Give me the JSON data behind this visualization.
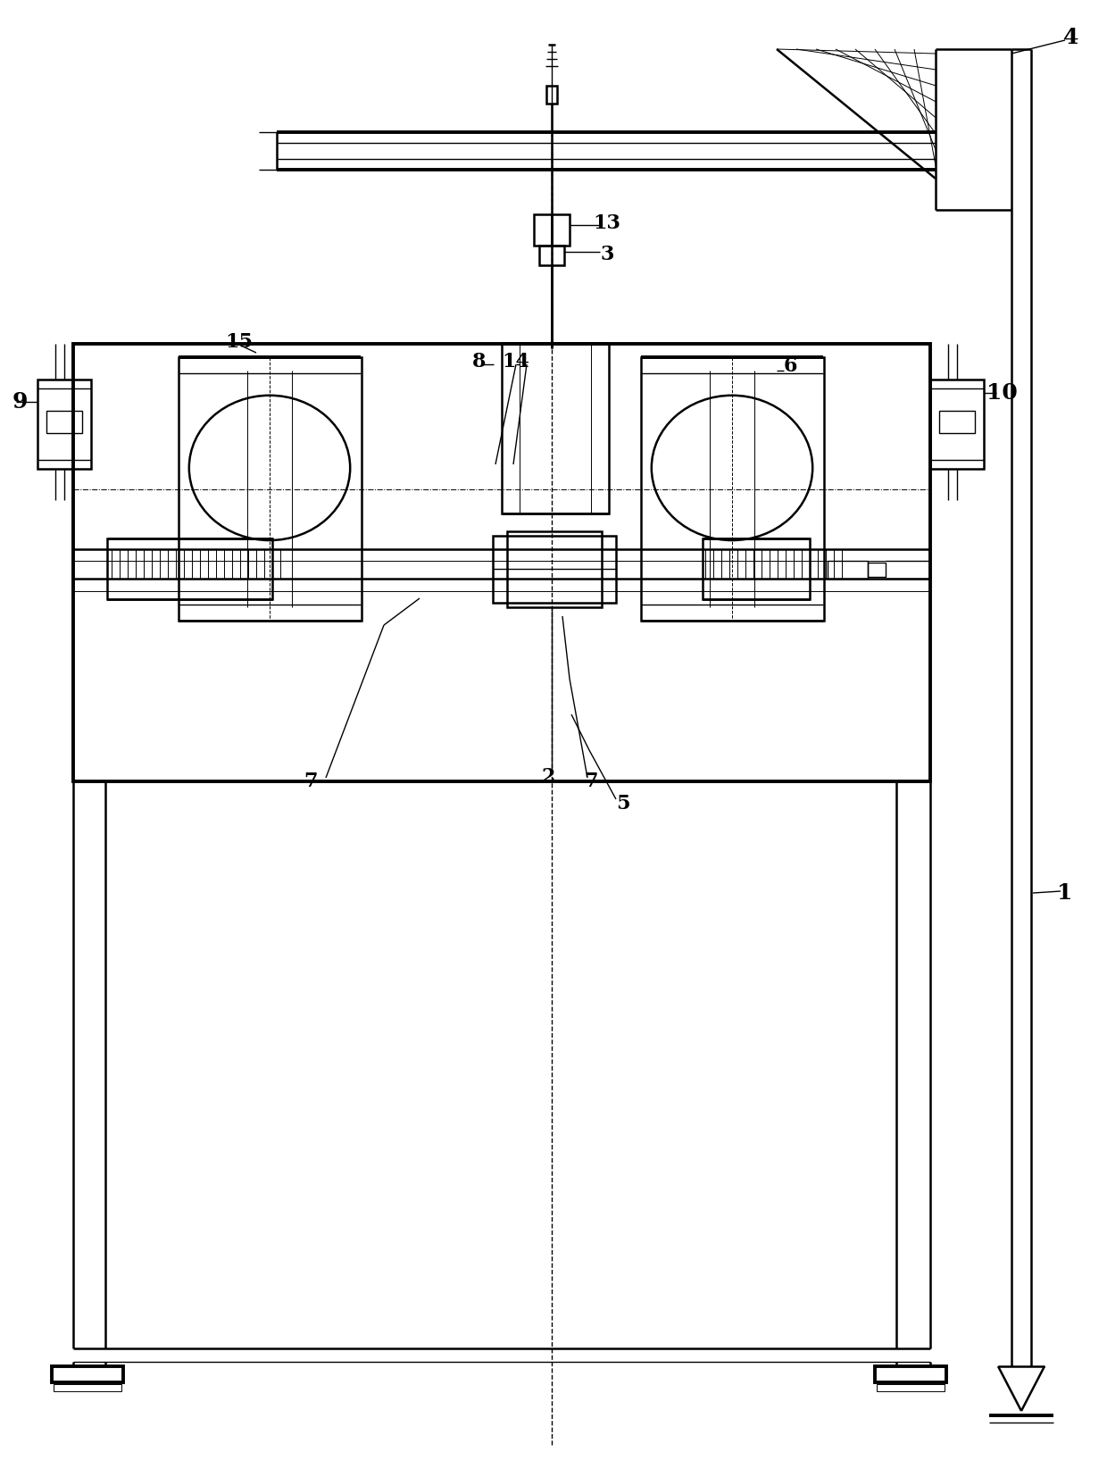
{
  "line_color": "#000000",
  "bg_color": "#ffffff",
  "lw_thick": 2.8,
  "lw_medium": 1.8,
  "lw_thin": 1.0,
  "lw_vthin": 0.7,
  "fig_width": 12.4,
  "fig_height": 16.54
}
